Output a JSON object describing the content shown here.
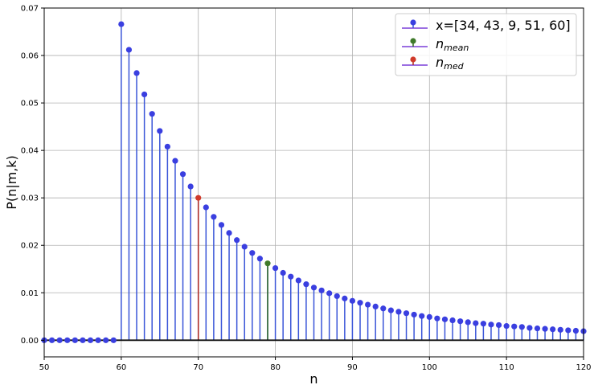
{
  "chart_data": {
    "type": "scatter",
    "style": "stem",
    "xlabel": "n",
    "ylabel": "P(n|m,k)",
    "xlim": [
      50,
      120
    ],
    "ylim": [
      -0.0035,
      0.07
    ],
    "xticks": [
      50,
      60,
      70,
      80,
      90,
      100,
      110,
      120
    ],
    "yticks": [
      0.0,
      0.01,
      0.02,
      0.03,
      0.04,
      0.05,
      0.06,
      0.07
    ],
    "ytick_labels": [
      "0.00",
      "0.01",
      "0.02",
      "0.03",
      "0.04",
      "0.05",
      "0.06",
      "0.07"
    ],
    "grid": true,
    "legend_position": "top-right",
    "x_start": 50,
    "series": [
      {
        "name": "x=[34, 43, 9, 51, 60]",
        "color": "#3a3fe0",
        "stem_color": "#3a55d8",
        "values": [
          0.0,
          0.0,
          0.0,
          0.0,
          0.0,
          0.0,
          0.0,
          0.0,
          0.0,
          0.0,
          0.0666,
          0.0612,
          0.0563,
          0.0518,
          0.0477,
          0.0441,
          0.0408,
          0.0378,
          0.035,
          0.0324,
          0.03,
          0.028,
          0.026,
          0.0243,
          0.0226,
          0.0211,
          0.0197,
          0.0184,
          0.0172,
          0.0162,
          0.0152,
          0.0142,
          0.0134,
          0.0126,
          0.0118,
          0.0111,
          0.0105,
          0.0099,
          0.0093,
          0.0088,
          0.0083,
          0.0079,
          0.0075,
          0.0071,
          0.0067,
          0.0063,
          0.006,
          0.0057,
          0.0054,
          0.0051,
          0.0049,
          0.0046,
          0.0044,
          0.0042,
          0.004,
          0.0038,
          0.0036,
          0.0035,
          0.0033,
          0.0032,
          0.003,
          0.0029,
          0.0028,
          0.0026,
          0.0025,
          0.0024,
          0.0023,
          0.0022,
          0.0021,
          0.002,
          0.0019
        ]
      },
      {
        "name": "n",
        "name_sub": "mean",
        "color": "#3f7a2a",
        "stem_color": "#2f6b1f",
        "points": [
          {
            "x": 79,
            "y": 0.0162
          }
        ]
      },
      {
        "name": "n",
        "name_sub": "med",
        "color": "#d03a2a",
        "stem_color": "#b02a20",
        "points": [
          {
            "x": 70,
            "y": 0.03
          }
        ]
      }
    ]
  }
}
